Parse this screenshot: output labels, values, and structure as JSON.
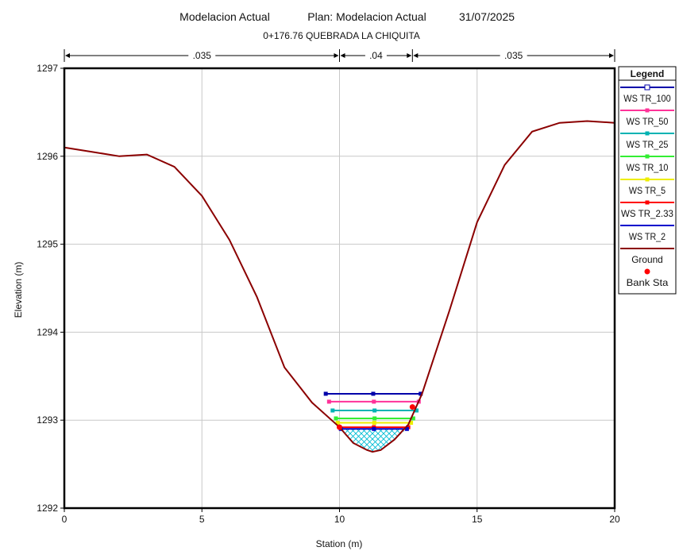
{
  "header": {
    "title_left": "Modelacion Actual",
    "plan": "Plan: Modelacion Actual",
    "date": "31/07/2025",
    "subtitle": "0+176.76  QUEBRADA LA CHIQUITA"
  },
  "manning": {
    "left": ".035",
    "channel": ".04",
    "right": ".035",
    "breaks": [
      0,
      10,
      12.65,
      20
    ]
  },
  "legend": {
    "title": "Legend",
    "items": [
      {
        "label": "WS TR_100",
        "color": "#0000aa",
        "marker": "square-open"
      },
      {
        "label": "WS TR_50",
        "color": "#ff3399",
        "marker": "plus"
      },
      {
        "label": "WS TR_25",
        "color": "#00b3b3",
        "marker": "square"
      },
      {
        "label": "WS TR_10",
        "color": "#33ee33",
        "marker": "x"
      },
      {
        "label": "WS TR_5",
        "color": "#eeee00",
        "marker": "dot"
      },
      {
        "label": "WS TR_2.33",
        "color": "#ff0000",
        "marker": "diamond"
      },
      {
        "label": "WS TR_2",
        "color": "#0000cc",
        "marker": "none"
      },
      {
        "label": "Ground",
        "color": "#8b0000",
        "marker": "none"
      },
      {
        "label": "Bank Sta",
        "color": "#ff0000",
        "marker": "dot-only"
      }
    ]
  },
  "chart_data": {
    "type": "line",
    "xlabel": "Station (m)",
    "ylabel": "Elevation (m)",
    "xlim": [
      0,
      20
    ],
    "ylim": [
      1292,
      1297
    ],
    "xticks": [
      0,
      5,
      10,
      15,
      20
    ],
    "yticks": [
      1292,
      1293,
      1294,
      1295,
      1296,
      1297
    ],
    "grid": true,
    "legend_position": "right",
    "ground": {
      "x": [
        0,
        1,
        2,
        3,
        4,
        5,
        6,
        7,
        8,
        9,
        10,
        10.5,
        11,
        11.2,
        11.5,
        12,
        12.5,
        13,
        14,
        15,
        16,
        17,
        18,
        19,
        20
      ],
      "y": [
        1296.1,
        1296.05,
        1296.0,
        1296.02,
        1295.88,
        1295.55,
        1295.05,
        1294.4,
        1293.6,
        1293.2,
        1292.92,
        1292.74,
        1292.66,
        1292.64,
        1292.66,
        1292.78,
        1292.95,
        1293.3,
        1294.25,
        1295.25,
        1295.9,
        1296.28,
        1296.38,
        1296.4,
        1296.38
      ]
    },
    "bank_stations": [
      {
        "x": 10.0,
        "y": 1292.92
      },
      {
        "x": 12.65,
        "y": 1293.15
      }
    ],
    "water_surfaces": [
      {
        "name": "WS TR_100",
        "elevation": 1293.3,
        "x_start": 9.5,
        "x_end": 12.95
      },
      {
        "name": "WS TR_50",
        "elevation": 1293.21,
        "x_start": 9.62,
        "x_end": 12.88
      },
      {
        "name": "WS TR_25",
        "elevation": 1293.11,
        "x_start": 9.75,
        "x_end": 12.8
      },
      {
        "name": "WS TR_10",
        "elevation": 1293.02,
        "x_start": 9.87,
        "x_end": 12.68
      },
      {
        "name": "WS TR_5",
        "elevation": 1292.97,
        "x_start": 9.93,
        "x_end": 12.6
      },
      {
        "name": "WS TR_2.33",
        "elevation": 1292.92,
        "x_start": 10.0,
        "x_end": 12.5
      },
      {
        "name": "WS TR_2",
        "elevation": 1292.9,
        "x_start": 10.05,
        "x_end": 12.45
      }
    ]
  }
}
